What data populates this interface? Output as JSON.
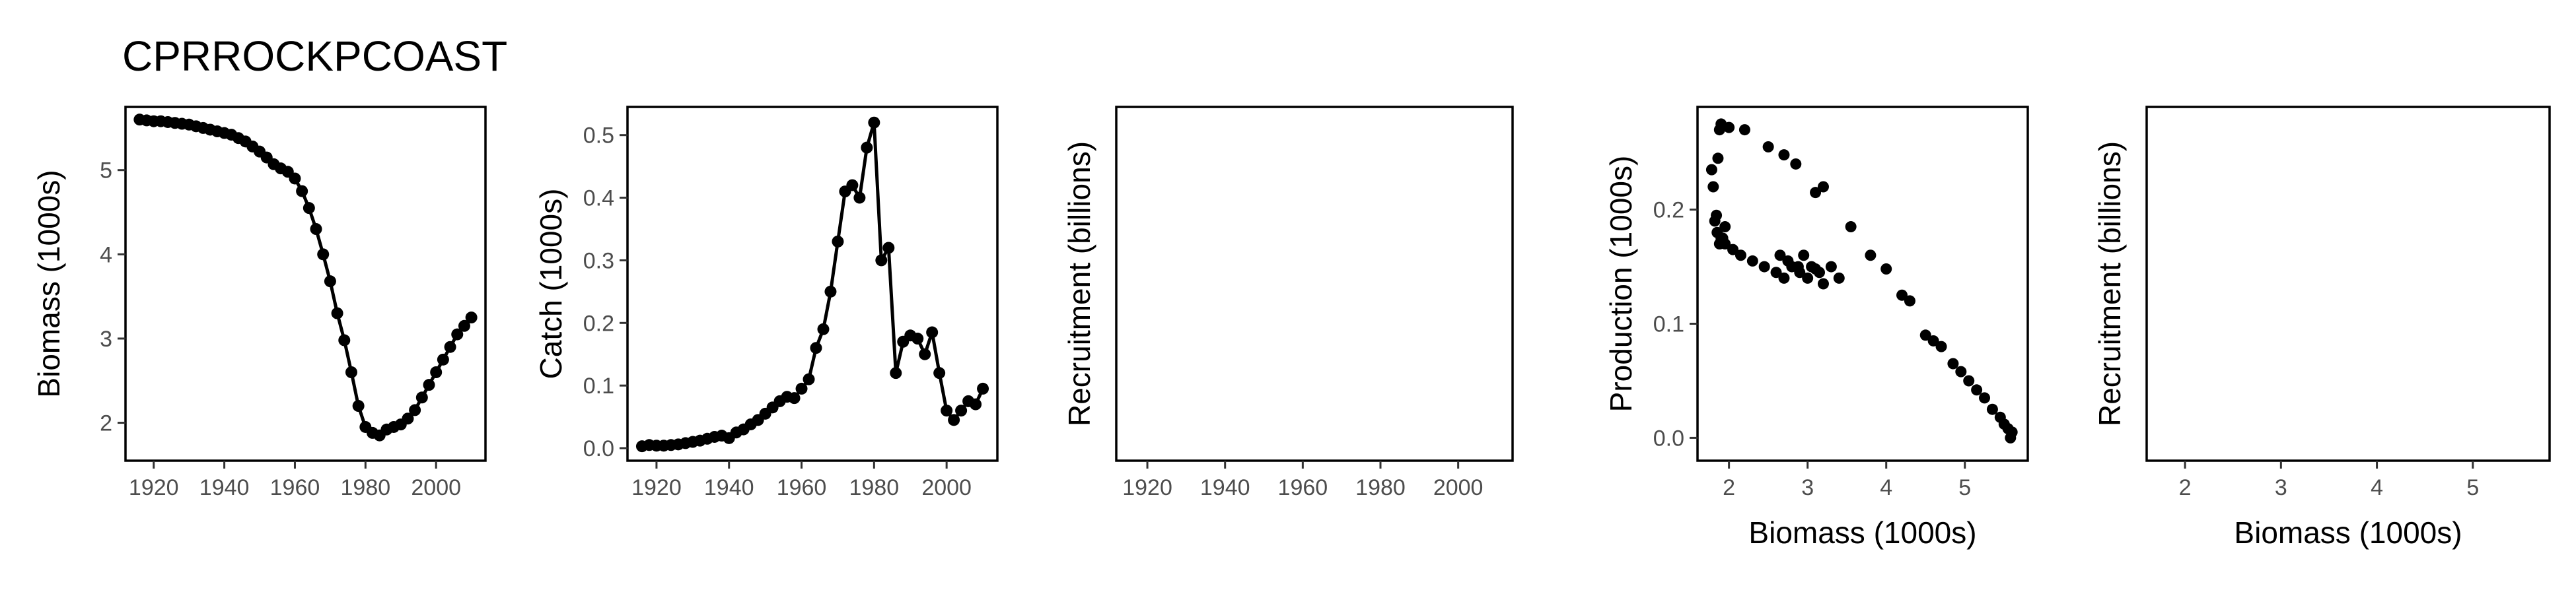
{
  "page_title": "CPRROCKPCOAST",
  "chart_data": [
    {
      "type": "line",
      "xlabel": "",
      "ylabel": "Biomass (1000s)",
      "xlim": [
        1912,
        2014
      ],
      "ylim": [
        1.55,
        5.75
      ],
      "xticks": [
        1920,
        1940,
        1960,
        1980,
        2000
      ],
      "yticks": [
        2,
        3,
        4,
        5
      ],
      "x": [
        1916,
        1918,
        1920,
        1922,
        1924,
        1926,
        1928,
        1930,
        1932,
        1934,
        1936,
        1938,
        1940,
        1942,
        1944,
        1946,
        1948,
        1950,
        1952,
        1954,
        1956,
        1958,
        1960,
        1962,
        1964,
        1966,
        1968,
        1970,
        1972,
        1974,
        1976,
        1978,
        1980,
        1982,
        1984,
        1986,
        1988,
        1990,
        1992,
        1994,
        1996,
        1998,
        2000,
        2002,
        2004,
        2006,
        2008,
        2010
      ],
      "y": [
        5.6,
        5.59,
        5.58,
        5.58,
        5.57,
        5.56,
        5.55,
        5.54,
        5.52,
        5.5,
        5.48,
        5.46,
        5.44,
        5.42,
        5.38,
        5.34,
        5.28,
        5.22,
        5.15,
        5.07,
        5.02,
        4.98,
        4.9,
        4.75,
        4.55,
        4.3,
        4.0,
        3.68,
        3.3,
        2.98,
        2.6,
        2.2,
        1.95,
        1.88,
        1.85,
        1.92,
        1.95,
        1.98,
        2.05,
        2.15,
        2.3,
        2.45,
        2.6,
        2.75,
        2.9,
        3.05,
        3.15,
        3.25
      ]
    },
    {
      "type": "line",
      "xlabel": "",
      "ylabel": "Catch (1000s)",
      "xlim": [
        1912,
        2014
      ],
      "ylim": [
        -0.02,
        0.545
      ],
      "xticks": [
        1920,
        1940,
        1960,
        1980,
        2000
      ],
      "yticks": [
        0.0,
        0.1,
        0.2,
        0.3,
        0.4,
        0.5
      ],
      "x": [
        1916,
        1918,
        1920,
        1922,
        1924,
        1926,
        1928,
        1930,
        1932,
        1934,
        1936,
        1938,
        1940,
        1942,
        1944,
        1946,
        1948,
        1950,
        1952,
        1954,
        1956,
        1958,
        1960,
        1962,
        1964,
        1966,
        1968,
        1970,
        1972,
        1974,
        1976,
        1978,
        1980,
        1982,
        1984,
        1986,
        1988,
        1990,
        1992,
        1994,
        1996,
        1998,
        2000,
        2002,
        2004,
        2006,
        2008,
        2010
      ],
      "y": [
        0.003,
        0.005,
        0.004,
        0.004,
        0.005,
        0.006,
        0.008,
        0.01,
        0.012,
        0.015,
        0.018,
        0.02,
        0.016,
        0.025,
        0.03,
        0.038,
        0.045,
        0.055,
        0.065,
        0.075,
        0.082,
        0.08,
        0.095,
        0.11,
        0.16,
        0.19,
        0.25,
        0.33,
        0.41,
        0.42,
        0.4,
        0.48,
        0.52,
        0.3,
        0.32,
        0.12,
        0.17,
        0.18,
        0.175,
        0.15,
        0.185,
        0.12,
        0.06,
        0.045,
        0.06,
        0.075,
        0.07,
        0.095
      ]
    },
    {
      "type": "line",
      "xlabel": "",
      "ylabel": "Recruitment (billions)",
      "xlim": [
        1912,
        2014
      ],
      "xticks": [
        1920,
        1940,
        1960,
        1980,
        2000
      ],
      "x": [],
      "y": []
    },
    {
      "type": "scatter",
      "xlabel": "Biomass (1000s)",
      "ylabel": "Production (1000s)",
      "xlim": [
        1.6,
        5.8
      ],
      "ylim": [
        -0.02,
        0.29
      ],
      "xticks": [
        2,
        3,
        4,
        5
      ],
      "yticks": [
        0.0,
        0.1,
        0.2
      ],
      "x": [
        1.8,
        1.86,
        1.88,
        1.9,
        2.0,
        2.2,
        2.5,
        2.7,
        2.85,
        3.1,
        3.2,
        3.55,
        3.8,
        4.0,
        4.2,
        4.3,
        4.5,
        4.6,
        4.7,
        4.85,
        4.95,
        5.05,
        5.15,
        5.25,
        5.35,
        5.45,
        5.5,
        5.55,
        5.58,
        5.6,
        1.78,
        1.82,
        1.85,
        1.9,
        1.95,
        2.05,
        2.15,
        2.3,
        2.45,
        2.6,
        2.7,
        2.8,
        2.9,
        3.0,
        3.1,
        3.2,
        3.3,
        3.4,
        1.95,
        1.88,
        2.65,
        2.75,
        2.88,
        2.95,
        3.05,
        3.15,
        1.84,
        1.92
      ],
      "y": [
        0.22,
        0.245,
        0.27,
        0.275,
        0.272,
        0.27,
        0.255,
        0.248,
        0.24,
        0.215,
        0.22,
        0.185,
        0.16,
        0.148,
        0.125,
        0.12,
        0.09,
        0.085,
        0.08,
        0.065,
        0.058,
        0.05,
        0.042,
        0.035,
        0.025,
        0.018,
        0.012,
        0.008,
        0.0,
        0.005,
        0.235,
        0.19,
        0.18,
        0.175,
        0.17,
        0.165,
        0.16,
        0.155,
        0.15,
        0.145,
        0.14,
        0.15,
        0.145,
        0.14,
        0.148,
        0.135,
        0.15,
        0.14,
        0.185,
        0.17,
        0.16,
        0.155,
        0.15,
        0.16,
        0.15,
        0.145,
        0.195,
        0.175
      ]
    },
    {
      "type": "scatter",
      "xlabel": "Biomass (1000s)",
      "ylabel": "Recruitment (billions)",
      "xlim": [
        1.6,
        5.8
      ],
      "xticks": [
        2,
        3,
        4,
        5
      ],
      "x": [],
      "y": []
    }
  ]
}
